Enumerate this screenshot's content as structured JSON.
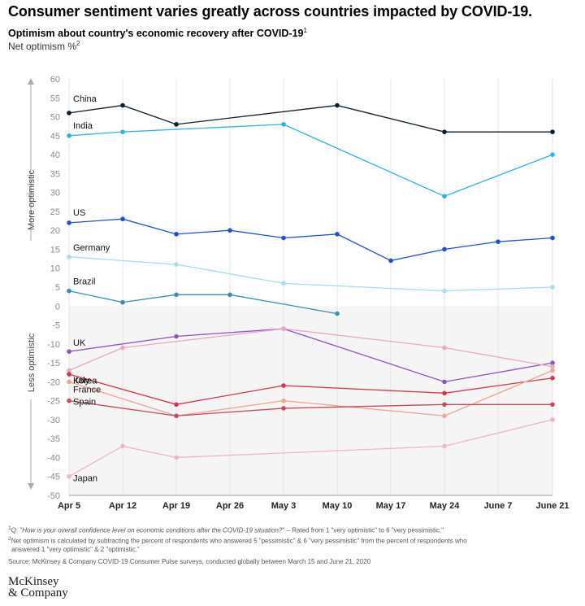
{
  "header": {
    "headline": "Consumer sentiment varies greatly across countries impacted by COVID-19.",
    "subtitle": "Optimism about country's economic recovery after COVID-19",
    "subtitle_sup": "1",
    "unit": "Net optimism %",
    "unit_sup": "2"
  },
  "chart_data": {
    "type": "line",
    "title": "Optimism about country's economic recovery after COVID-19",
    "ylabel": "Net optimism %",
    "ylim": [
      -50,
      60
    ],
    "yticks": [
      60,
      55,
      50,
      45,
      40,
      35,
      30,
      25,
      20,
      15,
      10,
      5,
      0,
      -5,
      -10,
      -15,
      -20,
      -25,
      -30,
      -35,
      -40,
      -45,
      -50
    ],
    "x_categories": [
      "Apr 5",
      "Apr 12",
      "Apr 19",
      "Apr 26",
      "May 3",
      "May 10",
      "May 17",
      "May 24",
      "June 7",
      "June 21"
    ],
    "annotations": {
      "upper": "More optimistic",
      "lower": "Less optimistic"
    },
    "grid": "vertical",
    "legend": "inline labels",
    "series": [
      {
        "name": "China",
        "color": "#0d1f2d",
        "points": [
          [
            "Apr 5",
            51
          ],
          [
            "Apr 12",
            53
          ],
          [
            "Apr 19",
            48
          ],
          [
            "May 10",
            53
          ],
          [
            "May 24",
            46
          ],
          [
            "June 21",
            46
          ]
        ]
      },
      {
        "name": "India",
        "color": "#2bb3e8",
        "points": [
          [
            "Apr 5",
            45
          ],
          [
            "Apr 12",
            46
          ],
          [
            "May 3",
            48
          ],
          [
            "May 24",
            29
          ],
          [
            "June 21",
            40
          ]
        ]
      },
      {
        "name": "US",
        "color": "#1f4fd8",
        "points": [
          [
            "Apr 5",
            22
          ],
          [
            "Apr 12",
            23
          ],
          [
            "Apr 19",
            19
          ],
          [
            "Apr 26",
            20
          ],
          [
            "May 3",
            18
          ],
          [
            "May 10",
            19
          ],
          [
            "May 17",
            12
          ],
          [
            "May 24",
            15
          ],
          [
            "June 7",
            17
          ],
          [
            "June 21",
            18
          ]
        ]
      },
      {
        "name": "Germany",
        "color": "#a6dcee",
        "points": [
          [
            "Apr 5",
            13
          ],
          [
            "Apr 19",
            11
          ],
          [
            "May 3",
            6
          ],
          [
            "May 24",
            4
          ],
          [
            "June 21",
            5
          ]
        ]
      },
      {
        "name": "Brazil",
        "color": "#3a8fae",
        "points": [
          [
            "Apr 5",
            4
          ],
          [
            "Apr 12",
            1
          ],
          [
            "Apr 19",
            3
          ],
          [
            "Apr 26",
            3
          ],
          [
            "May 10",
            -2
          ]
        ]
      },
      {
        "name": "UK",
        "color": "#8c55c0",
        "points": [
          [
            "Apr 5",
            -12
          ],
          [
            "Apr 19",
            -8
          ],
          [
            "May 3",
            -6
          ],
          [
            "May 24",
            -20
          ],
          [
            "June 21",
            -15
          ]
        ]
      },
      {
        "name": "Korea",
        "color": "#e8a8c2",
        "points": [
          [
            "Apr 5",
            -17
          ],
          [
            "Apr 12",
            -11
          ],
          [
            "May 3",
            -6
          ],
          [
            "May 24",
            -11
          ],
          [
            "June 21",
            -16
          ]
        ]
      },
      {
        "name": "Italy",
        "color": "#d9334e",
        "points": [
          [
            "Apr 5",
            -18
          ],
          [
            "Apr 19",
            -26
          ],
          [
            "May 3",
            -21
          ],
          [
            "May 24",
            -23
          ],
          [
            "June 21",
            -19
          ]
        ]
      },
      {
        "name": "France",
        "color": "#f2a48f",
        "points": [
          [
            "Apr 5",
            -20
          ],
          [
            "Apr 19",
            -29
          ],
          [
            "May 3",
            -25
          ],
          [
            "May 24",
            -29
          ],
          [
            "June 21",
            -17
          ]
        ]
      },
      {
        "name": "Spain",
        "color": "#c94a5e",
        "points": [
          [
            "Apr 5",
            -25
          ],
          [
            "Apr 19",
            -29
          ],
          [
            "May 3",
            -27
          ],
          [
            "May 24",
            -26
          ],
          [
            "June 21",
            -26
          ]
        ]
      },
      {
        "name": "Japan",
        "color": "#edb3cd",
        "points": [
          [
            "Apr 5",
            -45
          ],
          [
            "Apr 12",
            -37
          ],
          [
            "Apr 19",
            -40
          ],
          [
            "May 24",
            -37
          ],
          [
            "June 21",
            -30
          ]
        ]
      }
    ]
  },
  "footnotes": {
    "note1_prefix": "Q: \"",
    "note1_question": "How is your overall confidence level on economic conditions after the COVID-19 situation?",
    "note1_suffix": "\" – Rated from 1 \"very optimistic\" to 6 \"very pessimistic.\"",
    "note2_line1": "Net optimism is calculated by subtracting the percent of respondents who answered 5 \"pessimistic\" & 6 \"very pessimistic\" from the percent of respondents who",
    "note2_line2": "answered 1 \"very optimistic\" & 2 \"optimistic.\"",
    "source": "Source: McKinsey & Company COVID-19 Consumer Pulse surveys, conducted globally between March 15 and June 21, 2020"
  },
  "logo": {
    "line1": "McKinsey",
    "line2": "& Company"
  }
}
